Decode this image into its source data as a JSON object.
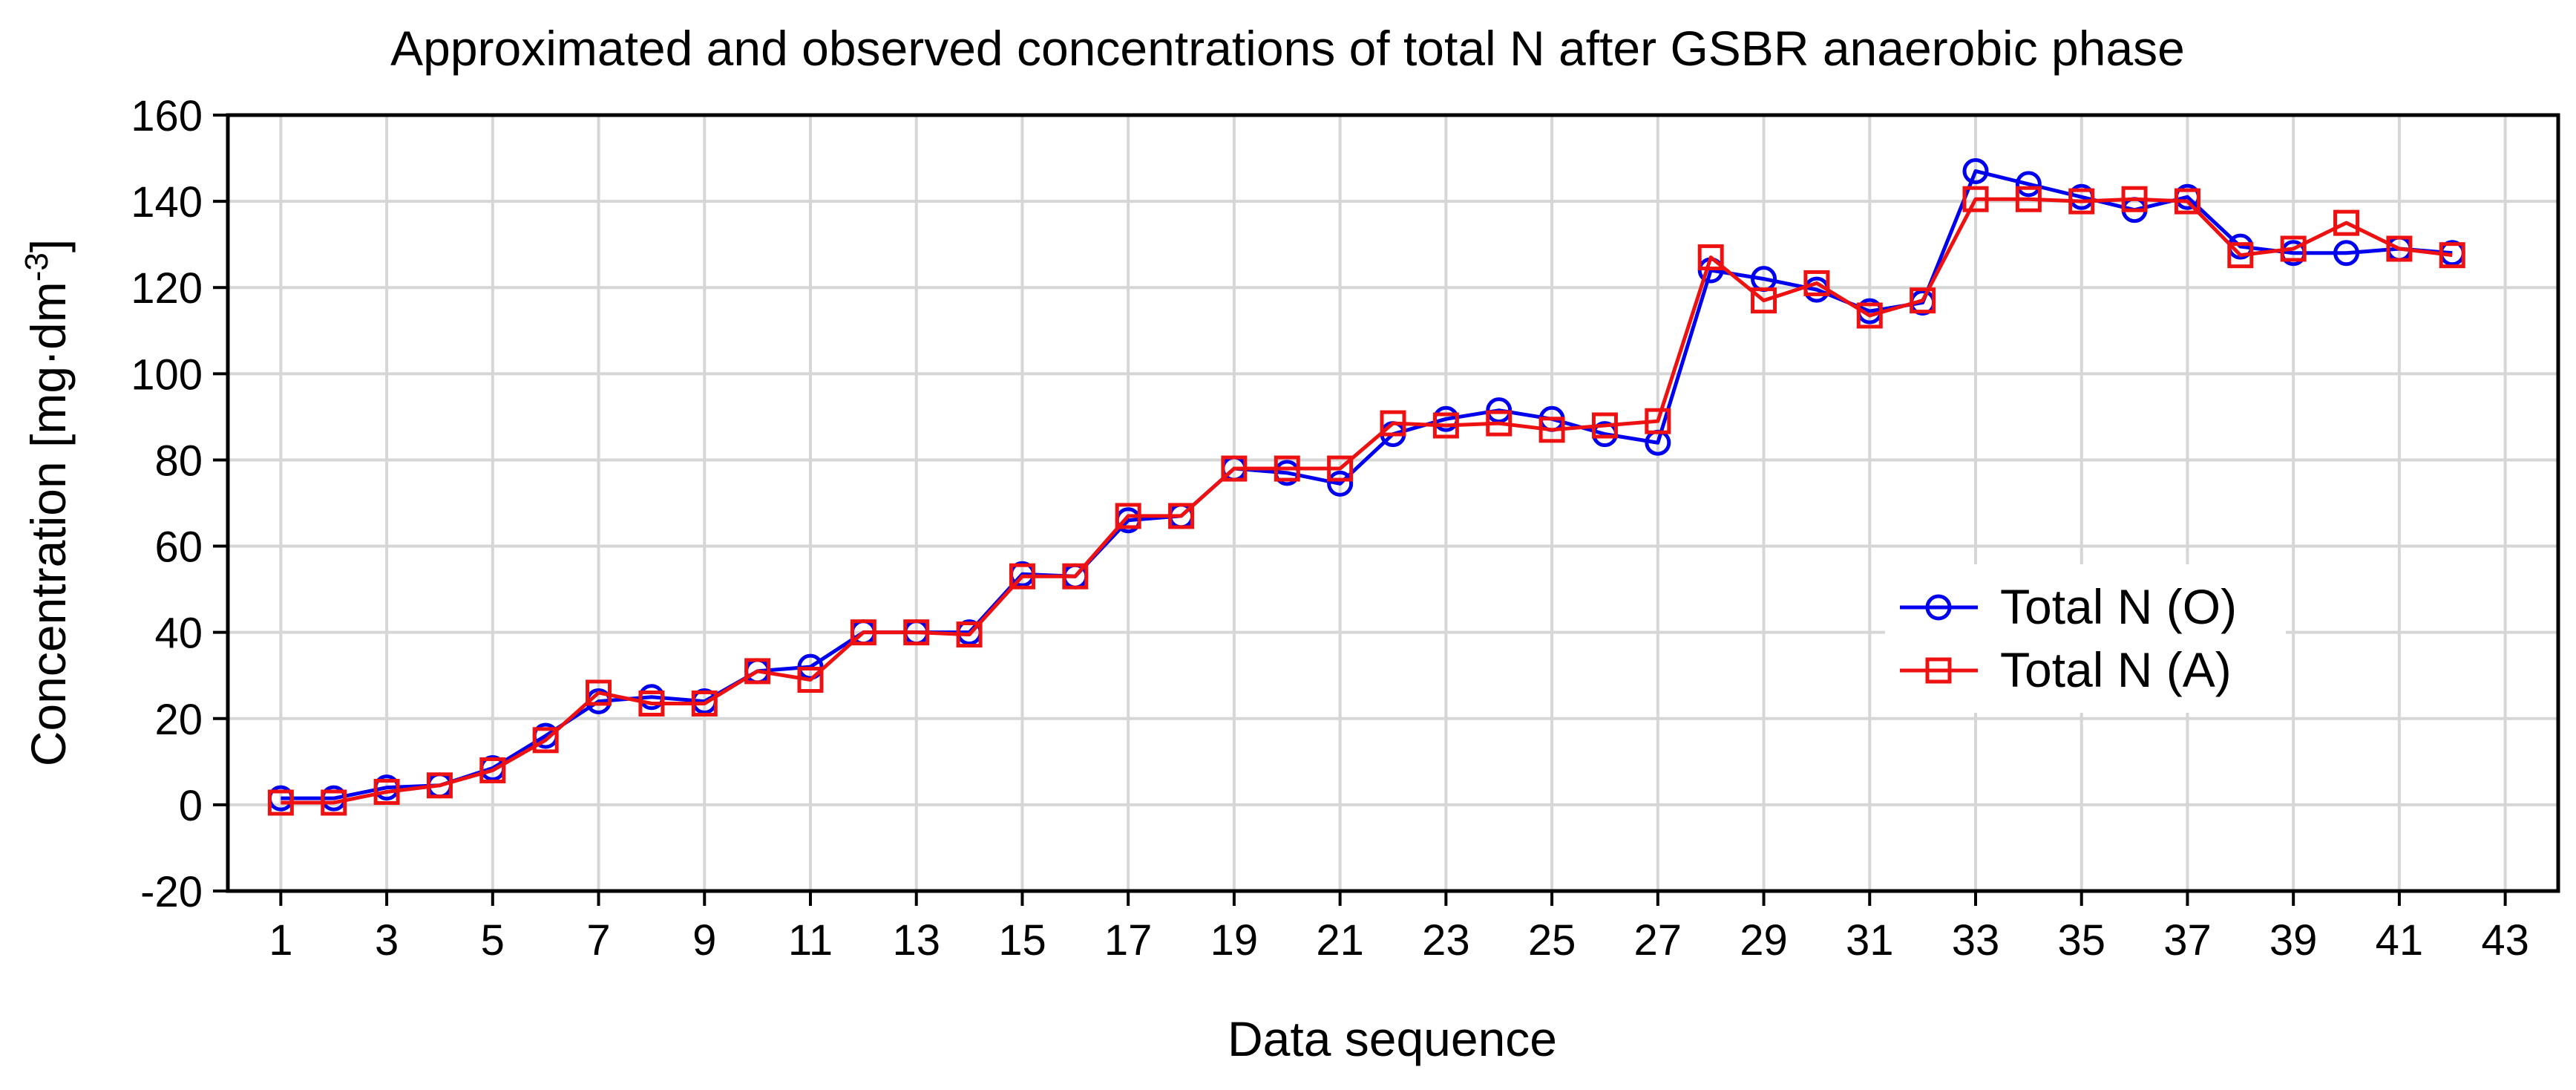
{
  "chart_data": {
    "type": "line",
    "title": "Approximated and observed concentrations of total N after GSBR anaerobic phase",
    "xlabel": "Data sequence",
    "ylabel_main": "Concentration [mg·dm",
    "ylabel_sup": "-3",
    "ylabel_close": "]",
    "xlim": [
      0,
      44
    ],
    "ylim": [
      -20,
      160
    ],
    "x_ticks": [
      1,
      3,
      5,
      7,
      9,
      11,
      13,
      15,
      17,
      19,
      21,
      23,
      25,
      27,
      29,
      31,
      33,
      35,
      37,
      39,
      41,
      43
    ],
    "y_ticks": [
      -20,
      0,
      20,
      40,
      60,
      80,
      100,
      120,
      140,
      160
    ],
    "grid": true,
    "legend_position": "right-center",
    "x": [
      1,
      2,
      3,
      4,
      5,
      6,
      7,
      8,
      9,
      10,
      11,
      12,
      13,
      14,
      15,
      16,
      17,
      18,
      19,
      20,
      21,
      22,
      23,
      24,
      25,
      26,
      27,
      28,
      29,
      30,
      31,
      32,
      33,
      34,
      35,
      36,
      37,
      38,
      39,
      40,
      41,
      42
    ],
    "series": [
      {
        "name": "Total N (O)",
        "color": "#0000ee",
        "marker": "circle",
        "values": [
          1.5,
          1.5,
          4,
          4.5,
          8.5,
          16,
          24,
          25,
          24,
          31,
          32,
          40,
          40,
          40,
          53.5,
          53,
          66,
          67,
          78,
          77,
          74.5,
          86,
          89.5,
          91.5,
          89.5,
          86,
          84,
          124,
          122,
          119.5,
          114.5,
          116.5,
          147,
          144,
          141,
          138,
          141,
          129.5,
          128,
          128,
          129,
          128
        ]
      },
      {
        "name": "Total N (A)",
        "color": "#ee1111",
        "marker": "square",
        "values": [
          0.5,
          0.5,
          3,
          4.5,
          8,
          15,
          26,
          23.5,
          23.5,
          31,
          29,
          40,
          40,
          39.5,
          53,
          53,
          67,
          67,
          78,
          78,
          78,
          88.5,
          88,
          88.5,
          87,
          88,
          89,
          127,
          117,
          121,
          113.5,
          117,
          140.5,
          140.5,
          140,
          140.5,
          140,
          127.5,
          129,
          135,
          129,
          127.5
        ]
      }
    ]
  }
}
